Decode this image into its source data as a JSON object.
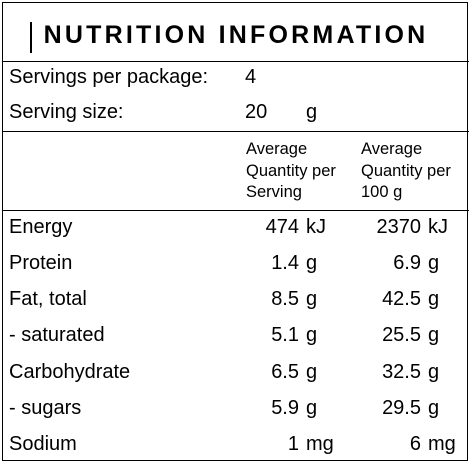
{
  "title": "NUTRITION INFORMATION",
  "servings": {
    "label": "Servings per package:",
    "value": "4"
  },
  "serving_size": {
    "label": "Serving size:",
    "value": "20",
    "unit": "g"
  },
  "headers": {
    "per_serving": [
      "Average",
      "Quantity per",
      "Serving"
    ],
    "per_100g": [
      "Average",
      "Quantity per",
      "100 g"
    ]
  },
  "rows": [
    {
      "name": "Energy",
      "serving": "474",
      "serving_unit": "kJ",
      "per100": "2370",
      "per100_unit": "kJ"
    },
    {
      "name": "Protein",
      "serving": "1.4",
      "serving_unit": "g",
      "per100": "6.9",
      "per100_unit": "g"
    },
    {
      "name": "Fat, total",
      "serving": "8.5",
      "serving_unit": "g",
      "per100": "42.5",
      "per100_unit": "g"
    },
    {
      "name": "- saturated",
      "serving": "5.1",
      "serving_unit": "g",
      "per100": "25.5",
      "per100_unit": "g"
    },
    {
      "name": "Carbohydrate",
      "serving": "6.5",
      "serving_unit": "g",
      "per100": "32.5",
      "per100_unit": "g"
    },
    {
      "name": "- sugars",
      "serving": "5.9",
      "serving_unit": "g",
      "per100": "29.5",
      "per100_unit": "g"
    },
    {
      "name": "Sodium",
      "serving": "1",
      "serving_unit": "mg",
      "per100": "6",
      "per100_unit": "mg"
    }
  ]
}
